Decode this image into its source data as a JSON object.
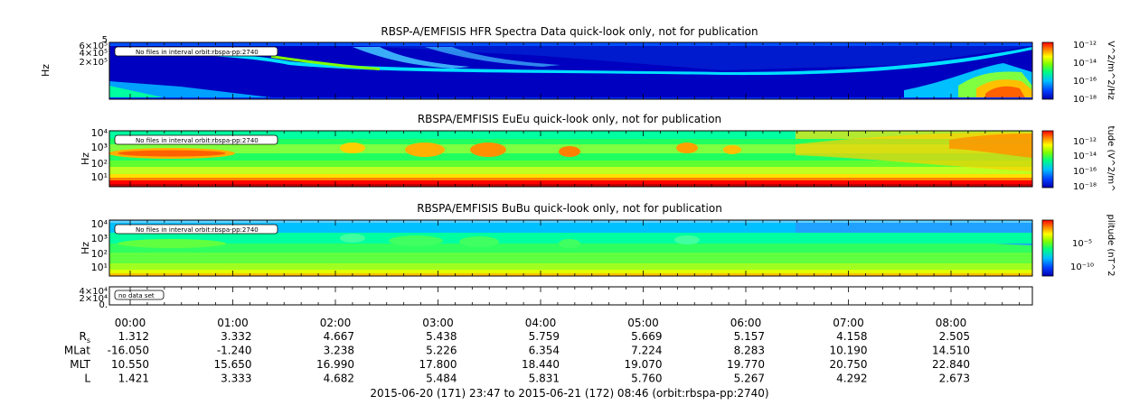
{
  "chart_data": [
    {
      "type": "heatmap",
      "title": "RBSP-A/EMFISIS  HFR Spectra Data quick-look only, not for publication",
      "ylabel": "Hz",
      "yticks": [
        "2×10⁵",
        "4×10⁵",
        "6×10⁵"
      ],
      "ytick_top": "5",
      "note": "No files in interval orbit:rbspa-pp:2740",
      "colorbar": {
        "label": "V^2/m^2/Hz",
        "ticks": [
          "10⁻¹²",
          "10⁻¹⁴",
          "10⁻¹⁶",
          "10⁻¹⁸"
        ],
        "log_range": [
          -18,
          -12
        ]
      },
      "colors": [
        "#0000b0",
        "#0040ff",
        "#00c0ff",
        "#00ff80",
        "#80ff00",
        "#ffff00",
        "#ff8000",
        "#ff0000"
      ]
    },
    {
      "type": "heatmap",
      "title": "RBSPA/EMFISIS  EuEu quick-look only, not for publication",
      "ylabel": "Hz",
      "yticks": [
        "10¹",
        "10²",
        "10³",
        "10⁴"
      ],
      "note": "No files in interval orbit:rbspa-pp:2740",
      "colorbar": {
        "label": "tude (V^2/m^",
        "ticks": [
          "10⁻¹²",
          "10⁻¹⁴",
          "10⁻¹⁶",
          "10⁻¹⁸"
        ],
        "log_range": [
          -18,
          -12
        ]
      }
    },
    {
      "type": "heatmap",
      "title": "RBSPA/EMFISIS  BuBu quick-look only, not for publication",
      "ylabel": "Hz",
      "yticks": [
        "10¹",
        "10²",
        "10³",
        "10⁴"
      ],
      "note": "No files in interval orbit:rbspa-pp:2740",
      "colorbar": {
        "label": "plitude (nT^2",
        "ticks": [
          "10⁻⁵",
          "10⁻¹⁰"
        ],
        "log_range": [
          -12,
          -2
        ]
      }
    },
    {
      "type": "line",
      "yticks": [
        "0.",
        "2×10⁴",
        "4×10⁴"
      ],
      "note": "no data set"
    }
  ],
  "x_axis": {
    "ticks": [
      "00:00",
      "01:00",
      "02:00",
      "03:00",
      "04:00",
      "05:00",
      "06:00",
      "07:00",
      "08:00"
    ],
    "rows": [
      {
        "label": "R",
        "sub": "s",
        "values": [
          "1.312",
          "3.332",
          "4.667",
          "5.438",
          "5.759",
          "5.669",
          "5.157",
          "4.158",
          "2.505"
        ]
      },
      {
        "label": "MLat",
        "sub": "",
        "values": [
          "-16.050",
          "-1.240",
          "3.238",
          "5.226",
          "6.354",
          "7.224",
          "8.283",
          "10.190",
          "14.510"
        ]
      },
      {
        "label": "MLT",
        "sub": "",
        "values": [
          "10.550",
          "15.650",
          "16.990",
          "17.800",
          "18.440",
          "19.070",
          "19.770",
          "20.750",
          "22.840"
        ]
      },
      {
        "label": "L",
        "sub": "",
        "values": [
          "1.421",
          "3.333",
          "4.682",
          "5.484",
          "5.831",
          "5.760",
          "5.267",
          "4.292",
          "2.673"
        ]
      }
    ],
    "caption": "2015-06-20 (171) 23:47 to 2015-06-21 (172) 08:46 (orbit:rbspa-pp:2740)"
  }
}
